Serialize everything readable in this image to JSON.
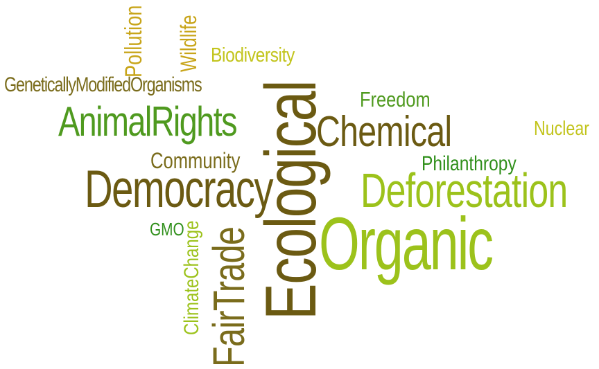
{
  "colors": {
    "olive_dark": "#6b5a12",
    "olive": "#7a6c1c",
    "green": "#4f9a1f",
    "green_bright": "#2f8f1a",
    "lime": "#9cc21b",
    "yellow_green": "#c2c41c",
    "gold": "#c8a51a"
  },
  "words": [
    {
      "text": "Ecological"
    },
    {
      "text": "Organic"
    },
    {
      "text": "FairTrade"
    },
    {
      "text": "Deforestation"
    },
    {
      "text": "Democracy"
    },
    {
      "text": "Chemical"
    },
    {
      "text": "AnimalRights"
    },
    {
      "text": "GeneticallyModifiedOrganisms"
    },
    {
      "text": "Biodiversity"
    },
    {
      "text": "Pollution"
    },
    {
      "text": "Wildlife"
    },
    {
      "text": "Freedom"
    },
    {
      "text": "Nuclear"
    },
    {
      "text": "Philanthropy"
    },
    {
      "text": "Community"
    },
    {
      "text": "GMO"
    },
    {
      "text": "ClimateChange"
    }
  ]
}
